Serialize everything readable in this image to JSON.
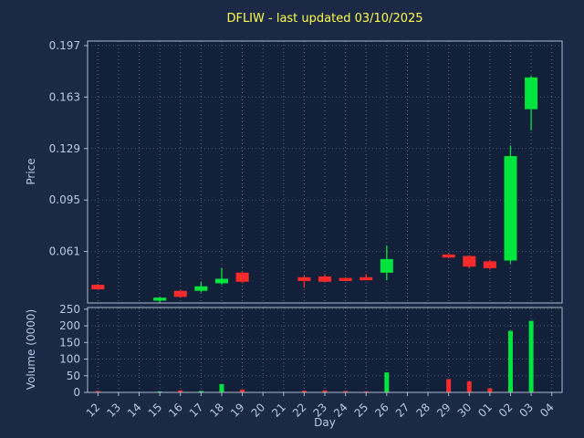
{
  "colors": {
    "figure_bg": "#1b2946",
    "plot_bg": "#132039",
    "grid": "#8fa3bf",
    "spine": "#aeb9cc",
    "text": "#b9c7e8",
    "title": "#ffff4d",
    "up": "#00e53e",
    "down": "#fb2b2b"
  },
  "chart_data": {
    "type": "candlestick",
    "title": "DFLIW - last updated 03/10/2025",
    "xlabel": "Day",
    "ylabel_price": "Price",
    "ylabel_volume": "Volume (0000)",
    "categories": [
      "12",
      "13",
      "14",
      "15",
      "16",
      "17",
      "18",
      "19",
      "20",
      "21",
      "22",
      "23",
      "24",
      "25",
      "26",
      "27",
      "28",
      "29",
      "30",
      "01",
      "02",
      "03",
      "04"
    ],
    "price_ticks": [
      0.197,
      0.163,
      0.129,
      0.095,
      0.061
    ],
    "price_range": [
      0.027,
      0.2
    ],
    "volume_ticks": [
      250,
      200,
      150,
      100,
      50,
      0
    ],
    "volume_range": [
      0,
      255
    ],
    "legend": "none",
    "grid": "dotted",
    "candles": [
      {
        "day": "12",
        "open": 0.039,
        "high": 0.0395,
        "low": 0.036,
        "close": 0.036,
        "volume": 4
      },
      {
        "day": "15",
        "open": 0.0285,
        "high": 0.031,
        "low": 0.027,
        "close": 0.0305,
        "volume": 3
      },
      {
        "day": "16",
        "open": 0.035,
        "high": 0.0355,
        "low": 0.0305,
        "close": 0.031,
        "volume": 6
      },
      {
        "day": "17",
        "open": 0.035,
        "high": 0.041,
        "low": 0.034,
        "close": 0.038,
        "volume": 4
      },
      {
        "day": "18",
        "open": 0.04,
        "high": 0.05,
        "low": 0.039,
        "close": 0.043,
        "volume": 25
      },
      {
        "day": "19",
        "open": 0.047,
        "high": 0.0475,
        "low": 0.04,
        "close": 0.041,
        "volume": 8
      },
      {
        "day": "22",
        "open": 0.044,
        "high": 0.045,
        "low": 0.037,
        "close": 0.0415,
        "volume": 5
      },
      {
        "day": "23",
        "open": 0.0445,
        "high": 0.046,
        "low": 0.041,
        "close": 0.041,
        "volume": 6
      },
      {
        "day": "24",
        "open": 0.0435,
        "high": 0.044,
        "low": 0.0415,
        "close": 0.0415,
        "volume": 4
      },
      {
        "day": "25",
        "open": 0.044,
        "high": 0.046,
        "low": 0.042,
        "close": 0.042,
        "volume": 3
      },
      {
        "day": "26",
        "open": 0.047,
        "high": 0.065,
        "low": 0.042,
        "close": 0.056,
        "volume": 60
      },
      {
        "day": "29",
        "open": 0.059,
        "high": 0.06,
        "low": 0.0565,
        "close": 0.057,
        "volume": 40
      },
      {
        "day": "30",
        "open": 0.058,
        "high": 0.0585,
        "low": 0.05,
        "close": 0.051,
        "volume": 33
      },
      {
        "day": "01",
        "open": 0.0545,
        "high": 0.0555,
        "low": 0.049,
        "close": 0.05,
        "volume": 12
      },
      {
        "day": "02",
        "open": 0.055,
        "high": 0.131,
        "low": 0.053,
        "close": 0.124,
        "volume": 185
      },
      {
        "day": "03",
        "open": 0.155,
        "high": 0.177,
        "low": 0.141,
        "close": 0.176,
        "volume": 215
      }
    ]
  }
}
